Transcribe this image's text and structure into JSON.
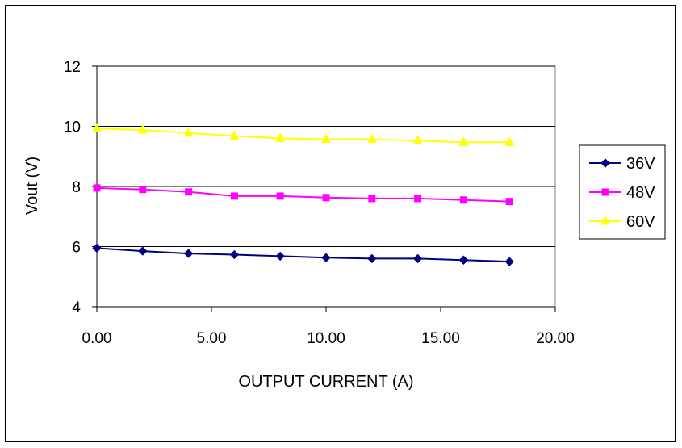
{
  "chart_data": {
    "type": "line",
    "title": "",
    "xlabel": "OUTPUT CURRENT (A)",
    "ylabel": "Vout (V)",
    "xlim": [
      0,
      20
    ],
    "ylim": [
      4,
      12
    ],
    "x_ticks": [
      0,
      5,
      10,
      15,
      20
    ],
    "x_tick_labels": [
      "0.00",
      "5.00",
      "10.00",
      "15.00",
      "20.00"
    ],
    "y_ticks": [
      4,
      6,
      8,
      10,
      12
    ],
    "y_tick_labels": [
      "4",
      "6",
      "8",
      "10",
      "12"
    ],
    "grid": "horizontal",
    "legend_position": "right",
    "x": [
      0,
      2,
      4,
      6,
      8,
      10,
      12,
      14,
      16,
      18
    ],
    "series": [
      {
        "name": "36V",
        "color": "#000080",
        "marker": "diamond",
        "values": [
          5.95,
          5.85,
          5.77,
          5.73,
          5.68,
          5.63,
          5.6,
          5.6,
          5.55,
          5.5
        ]
      },
      {
        "name": "48V",
        "color": "#ff00ff",
        "marker": "square",
        "values": [
          7.95,
          7.9,
          7.82,
          7.68,
          7.68,
          7.63,
          7.6,
          7.6,
          7.55,
          7.5
        ]
      },
      {
        "name": "60V",
        "color": "#ffff00",
        "marker": "triangle",
        "values": [
          9.92,
          9.88,
          9.78,
          9.68,
          9.6,
          9.57,
          9.57,
          9.52,
          9.47,
          9.47
        ]
      }
    ]
  }
}
